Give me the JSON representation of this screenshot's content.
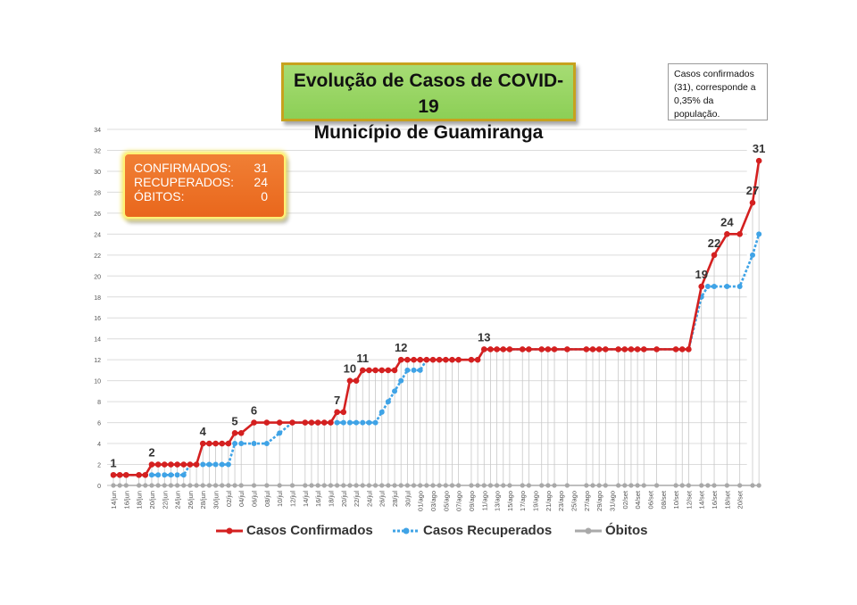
{
  "title": {
    "line1": "Evolução de Casos de COVID-19",
    "line2": "Município de Guamiranga"
  },
  "note": "Casos confirmados (31), corresponde a 0,35% da população.",
  "summary": {
    "confirmados_label": "CONFIRMADOS:",
    "confirmados_value": "31",
    "recuperados_label": "RECUPERADOS:",
    "recuperados_value": "24",
    "obitos_label": "ÓBITOS:",
    "obitos_value": "0"
  },
  "colors": {
    "confirmados": "#d42020",
    "recuperados": "#3fa3e6",
    "obitos": "#a9a9a9",
    "grid": "#dcdcdc"
  },
  "chart_data": {
    "type": "line",
    "ylim": [
      0,
      34
    ],
    "yticks": [
      0,
      2,
      4,
      6,
      8,
      10,
      12,
      14,
      16,
      18,
      20,
      22,
      24,
      26,
      28,
      30,
      32,
      34
    ],
    "x_tick_labels": [
      "14/jun",
      "16/jun",
      "18/jun",
      "20/jun",
      "22/jun",
      "24/jun",
      "26/jun",
      "28/jun",
      "30/jun",
      "02/jul",
      "04/jul",
      "06/jul",
      "08/jul",
      "10/jul",
      "12/jul",
      "14/jul",
      "16/jul",
      "18/jul",
      "20/jul",
      "22/jul",
      "24/jul",
      "26/jul",
      "28/jul",
      "30/jul",
      "01/ago",
      "03/ago",
      "05/ago",
      "07/ago",
      "09/ago",
      "11/ago",
      "13/ago",
      "15/ago",
      "17/ago",
      "19/ago",
      "21/ago",
      "23/ago",
      "25/ago",
      "27/ago",
      "29/ago",
      "31/ago",
      "02/set",
      "04/set",
      "06/set",
      "08/set",
      "10/set",
      "12/set",
      "14/set",
      "16/set",
      "18/set",
      "20/set"
    ],
    "legend": "bottom",
    "series": [
      {
        "name": "Casos Confirmados",
        "points": [
          [
            0,
            1
          ],
          [
            1,
            1
          ],
          [
            2,
            1
          ],
          [
            4,
            1
          ],
          [
            5,
            1
          ],
          [
            6,
            2
          ],
          [
            7,
            2
          ],
          [
            8,
            2
          ],
          [
            9,
            2
          ],
          [
            10,
            2
          ],
          [
            11,
            2
          ],
          [
            12,
            2
          ],
          [
            13,
            2
          ],
          [
            14,
            4
          ],
          [
            15,
            4
          ],
          [
            16,
            4
          ],
          [
            17,
            4
          ],
          [
            18,
            4
          ],
          [
            19,
            5
          ],
          [
            20,
            5
          ],
          [
            22,
            6
          ],
          [
            24,
            6
          ],
          [
            26,
            6
          ],
          [
            28,
            6
          ],
          [
            30,
            6
          ],
          [
            31,
            6
          ],
          [
            32,
            6
          ],
          [
            33,
            6
          ],
          [
            34,
            6
          ],
          [
            35,
            7
          ],
          [
            36,
            7
          ],
          [
            37,
            10
          ],
          [
            38,
            10
          ],
          [
            39,
            11
          ],
          [
            40,
            11
          ],
          [
            41,
            11
          ],
          [
            42,
            11
          ],
          [
            43,
            11
          ],
          [
            44,
            11
          ],
          [
            45,
            12
          ],
          [
            46,
            12
          ],
          [
            47,
            12
          ],
          [
            48,
            12
          ],
          [
            49,
            12
          ],
          [
            50,
            12
          ],
          [
            51,
            12
          ],
          [
            52,
            12
          ],
          [
            53,
            12
          ],
          [
            54,
            12
          ],
          [
            56,
            12
          ],
          [
            57,
            12
          ],
          [
            58,
            13
          ],
          [
            59,
            13
          ],
          [
            60,
            13
          ],
          [
            61,
            13
          ],
          [
            62,
            13
          ],
          [
            64,
            13
          ],
          [
            65,
            13
          ],
          [
            67,
            13
          ],
          [
            68,
            13
          ],
          [
            69,
            13
          ],
          [
            71,
            13
          ],
          [
            74,
            13
          ],
          [
            75,
            13
          ],
          [
            76,
            13
          ],
          [
            77,
            13
          ],
          [
            79,
            13
          ],
          [
            80,
            13
          ],
          [
            81,
            13
          ],
          [
            82,
            13
          ],
          [
            83,
            13
          ],
          [
            85,
            13
          ],
          [
            88,
            13
          ],
          [
            89,
            13
          ],
          [
            90,
            13
          ],
          [
            92,
            19
          ],
          [
            94,
            22
          ],
          [
            96,
            24
          ],
          [
            98,
            24
          ],
          [
            100,
            27
          ],
          [
            101,
            31
          ]
        ],
        "labels": [
          [
            0,
            "1"
          ],
          [
            6,
            "2"
          ],
          [
            14,
            "4"
          ],
          [
            19,
            "5"
          ],
          [
            22,
            "6"
          ],
          [
            35,
            "7"
          ],
          [
            37,
            "10"
          ],
          [
            39,
            "11"
          ],
          [
            45,
            "12"
          ],
          [
            58,
            "13"
          ],
          [
            92,
            "19"
          ],
          [
            94,
            "22"
          ],
          [
            96,
            "24"
          ],
          [
            100,
            "27"
          ],
          [
            101,
            "31"
          ]
        ]
      },
      {
        "name": "Casos Recuperados",
        "points": [
          [
            0,
            1
          ],
          [
            1,
            1
          ],
          [
            2,
            1
          ],
          [
            4,
            1
          ],
          [
            5,
            1
          ],
          [
            6,
            1
          ],
          [
            7,
            1
          ],
          [
            8,
            1
          ],
          [
            9,
            1
          ],
          [
            10,
            1
          ],
          [
            11,
            1
          ],
          [
            12,
            2
          ],
          [
            13,
            2
          ],
          [
            14,
            2
          ],
          [
            15,
            2
          ],
          [
            16,
            2
          ],
          [
            17,
            2
          ],
          [
            18,
            2
          ],
          [
            19,
            4
          ],
          [
            20,
            4
          ],
          [
            22,
            4
          ],
          [
            24,
            4
          ],
          [
            26,
            5
          ],
          [
            28,
            6
          ],
          [
            30,
            6
          ],
          [
            31,
            6
          ],
          [
            32,
            6
          ],
          [
            33,
            6
          ],
          [
            34,
            6
          ],
          [
            35,
            6
          ],
          [
            36,
            6
          ],
          [
            37,
            6
          ],
          [
            38,
            6
          ],
          [
            39,
            6
          ],
          [
            40,
            6
          ],
          [
            41,
            6
          ],
          [
            42,
            7
          ],
          [
            43,
            8
          ],
          [
            44,
            9
          ],
          [
            45,
            10
          ],
          [
            46,
            11
          ],
          [
            47,
            11
          ],
          [
            48,
            11
          ],
          [
            49,
            12
          ],
          [
            50,
            12
          ],
          [
            51,
            12
          ],
          [
            52,
            12
          ],
          [
            53,
            12
          ],
          [
            54,
            12
          ],
          [
            56,
            12
          ],
          [
            57,
            12
          ],
          [
            58,
            13
          ],
          [
            59,
            13
          ],
          [
            60,
            13
          ],
          [
            61,
            13
          ],
          [
            62,
            13
          ],
          [
            64,
            13
          ],
          [
            65,
            13
          ],
          [
            67,
            13
          ],
          [
            68,
            13
          ],
          [
            69,
            13
          ],
          [
            71,
            13
          ],
          [
            74,
            13
          ],
          [
            75,
            13
          ],
          [
            76,
            13
          ],
          [
            77,
            13
          ],
          [
            79,
            13
          ],
          [
            80,
            13
          ],
          [
            81,
            13
          ],
          [
            82,
            13
          ],
          [
            83,
            13
          ],
          [
            85,
            13
          ],
          [
            88,
            13
          ],
          [
            89,
            13
          ],
          [
            90,
            13
          ],
          [
            92,
            18
          ],
          [
            93,
            19
          ],
          [
            94,
            19
          ],
          [
            96,
            19
          ],
          [
            98,
            19
          ],
          [
            100,
            22
          ],
          [
            101,
            24
          ]
        ]
      },
      {
        "name": "Óbitos",
        "points": [
          [
            0,
            0
          ],
          [
            1,
            0
          ],
          [
            2,
            0
          ],
          [
            4,
            0
          ],
          [
            5,
            0
          ],
          [
            6,
            0
          ],
          [
            7,
            0
          ],
          [
            8,
            0
          ],
          [
            9,
            0
          ],
          [
            10,
            0
          ],
          [
            11,
            0
          ],
          [
            12,
            0
          ],
          [
            13,
            0
          ],
          [
            14,
            0
          ],
          [
            15,
            0
          ],
          [
            16,
            0
          ],
          [
            17,
            0
          ],
          [
            18,
            0
          ],
          [
            19,
            0
          ],
          [
            20,
            0
          ],
          [
            22,
            0
          ],
          [
            24,
            0
          ],
          [
            26,
            0
          ],
          [
            28,
            0
          ],
          [
            30,
            0
          ],
          [
            31,
            0
          ],
          [
            32,
            0
          ],
          [
            33,
            0
          ],
          [
            34,
            0
          ],
          [
            35,
            0
          ],
          [
            36,
            0
          ],
          [
            37,
            0
          ],
          [
            38,
            0
          ],
          [
            39,
            0
          ],
          [
            40,
            0
          ],
          [
            41,
            0
          ],
          [
            42,
            0
          ],
          [
            43,
            0
          ],
          [
            44,
            0
          ],
          [
            45,
            0
          ],
          [
            46,
            0
          ],
          [
            47,
            0
          ],
          [
            48,
            0
          ],
          [
            49,
            0
          ],
          [
            50,
            0
          ],
          [
            51,
            0
          ],
          [
            52,
            0
          ],
          [
            53,
            0
          ],
          [
            54,
            0
          ],
          [
            56,
            0
          ],
          [
            57,
            0
          ],
          [
            58,
            0
          ],
          [
            59,
            0
          ],
          [
            60,
            0
          ],
          [
            61,
            0
          ],
          [
            62,
            0
          ],
          [
            64,
            0
          ],
          [
            65,
            0
          ],
          [
            67,
            0
          ],
          [
            68,
            0
          ],
          [
            69,
            0
          ],
          [
            71,
            0
          ],
          [
            74,
            0
          ],
          [
            75,
            0
          ],
          [
            76,
            0
          ],
          [
            77,
            0
          ],
          [
            79,
            0
          ],
          [
            80,
            0
          ],
          [
            81,
            0
          ],
          [
            82,
            0
          ],
          [
            83,
            0
          ],
          [
            85,
            0
          ],
          [
            88,
            0
          ],
          [
            89,
            0
          ],
          [
            90,
            0
          ],
          [
            92,
            0
          ],
          [
            93,
            0
          ],
          [
            94,
            0
          ],
          [
            96,
            0
          ],
          [
            98,
            0
          ],
          [
            100,
            0
          ],
          [
            101,
            0
          ]
        ]
      }
    ]
  }
}
